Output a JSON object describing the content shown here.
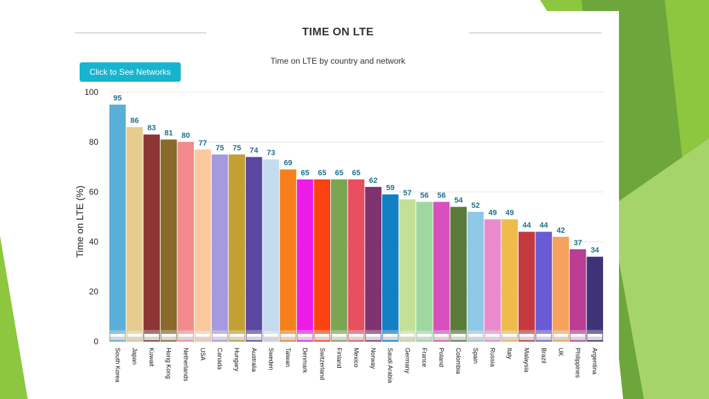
{
  "slide": {
    "heading": "TIME ON LTE",
    "subtitle": "Time on LTE by country and network",
    "button_label": "Click to See Networks",
    "accent_color": "#17b4cf",
    "decoration_colors": [
      "#8dc63f",
      "#6da63a",
      "#a7d36b"
    ]
  },
  "chart_data": {
    "type": "bar",
    "title": "Time on LTE by country and network",
    "xlabel": "",
    "ylabel": "Time on LTE (%)",
    "ylim": [
      0,
      100
    ],
    "yticks": [
      0,
      20,
      40,
      60,
      80,
      100
    ],
    "grid": true,
    "legend": "none",
    "categories": [
      "South Korea",
      "Japan",
      "Kuwait",
      "Hong Kong",
      "Netherlands",
      "USA",
      "Canada",
      "Hungary",
      "Australia",
      "Sweden",
      "Taiwan",
      "Denmark",
      "Switzerland",
      "Finland",
      "Mexico",
      "Norway",
      "Saudi Arabia",
      "Germany",
      "France",
      "Poland",
      "Colombia",
      "Spain",
      "Russia",
      "Italy",
      "Malaysia",
      "Brazil",
      "UK",
      "Philippines",
      "Argentina"
    ],
    "values": [
      95,
      86,
      83,
      81,
      80,
      77,
      75,
      75,
      74,
      73,
      69,
      65,
      65,
      65,
      65,
      62,
      59,
      57,
      56,
      56,
      54,
      52,
      49,
      49,
      44,
      44,
      42,
      37,
      34
    ],
    "colors": [
      "#5aafd8",
      "#e8cb8e",
      "#8b3534",
      "#8a6a2c",
      "#f28b8d",
      "#fbc99f",
      "#a59ae0",
      "#c2a032",
      "#5a47a0",
      "#c4dcee",
      "#f77f19",
      "#ec1ce6",
      "#fa4311",
      "#7aa653",
      "#e84f5f",
      "#7f3270",
      "#127fc4",
      "#c4e097",
      "#9ed89e",
      "#d94fbd",
      "#597a3b",
      "#8ec8e6",
      "#ea8acd",
      "#efbb4a",
      "#c4393f",
      "#6a5ad4",
      "#f6a25c",
      "#b93d92",
      "#3d3478"
    ],
    "flags": [
      "South Korea",
      "Japan",
      "Kuwait",
      "Hong Kong",
      "Netherlands",
      "USA",
      "Canada",
      "Hungary",
      "Australia",
      "Sweden",
      "Taiwan",
      "Denmark",
      "Switzerland",
      "Finland",
      "Mexico",
      "Norway",
      "Saudi Arabia",
      "Germany",
      "France",
      "Poland",
      "Colombia",
      "Spain",
      "Russia",
      "Italy",
      "Malaysia",
      "Brazil",
      "UK",
      "Philippines",
      "Argentina"
    ]
  }
}
